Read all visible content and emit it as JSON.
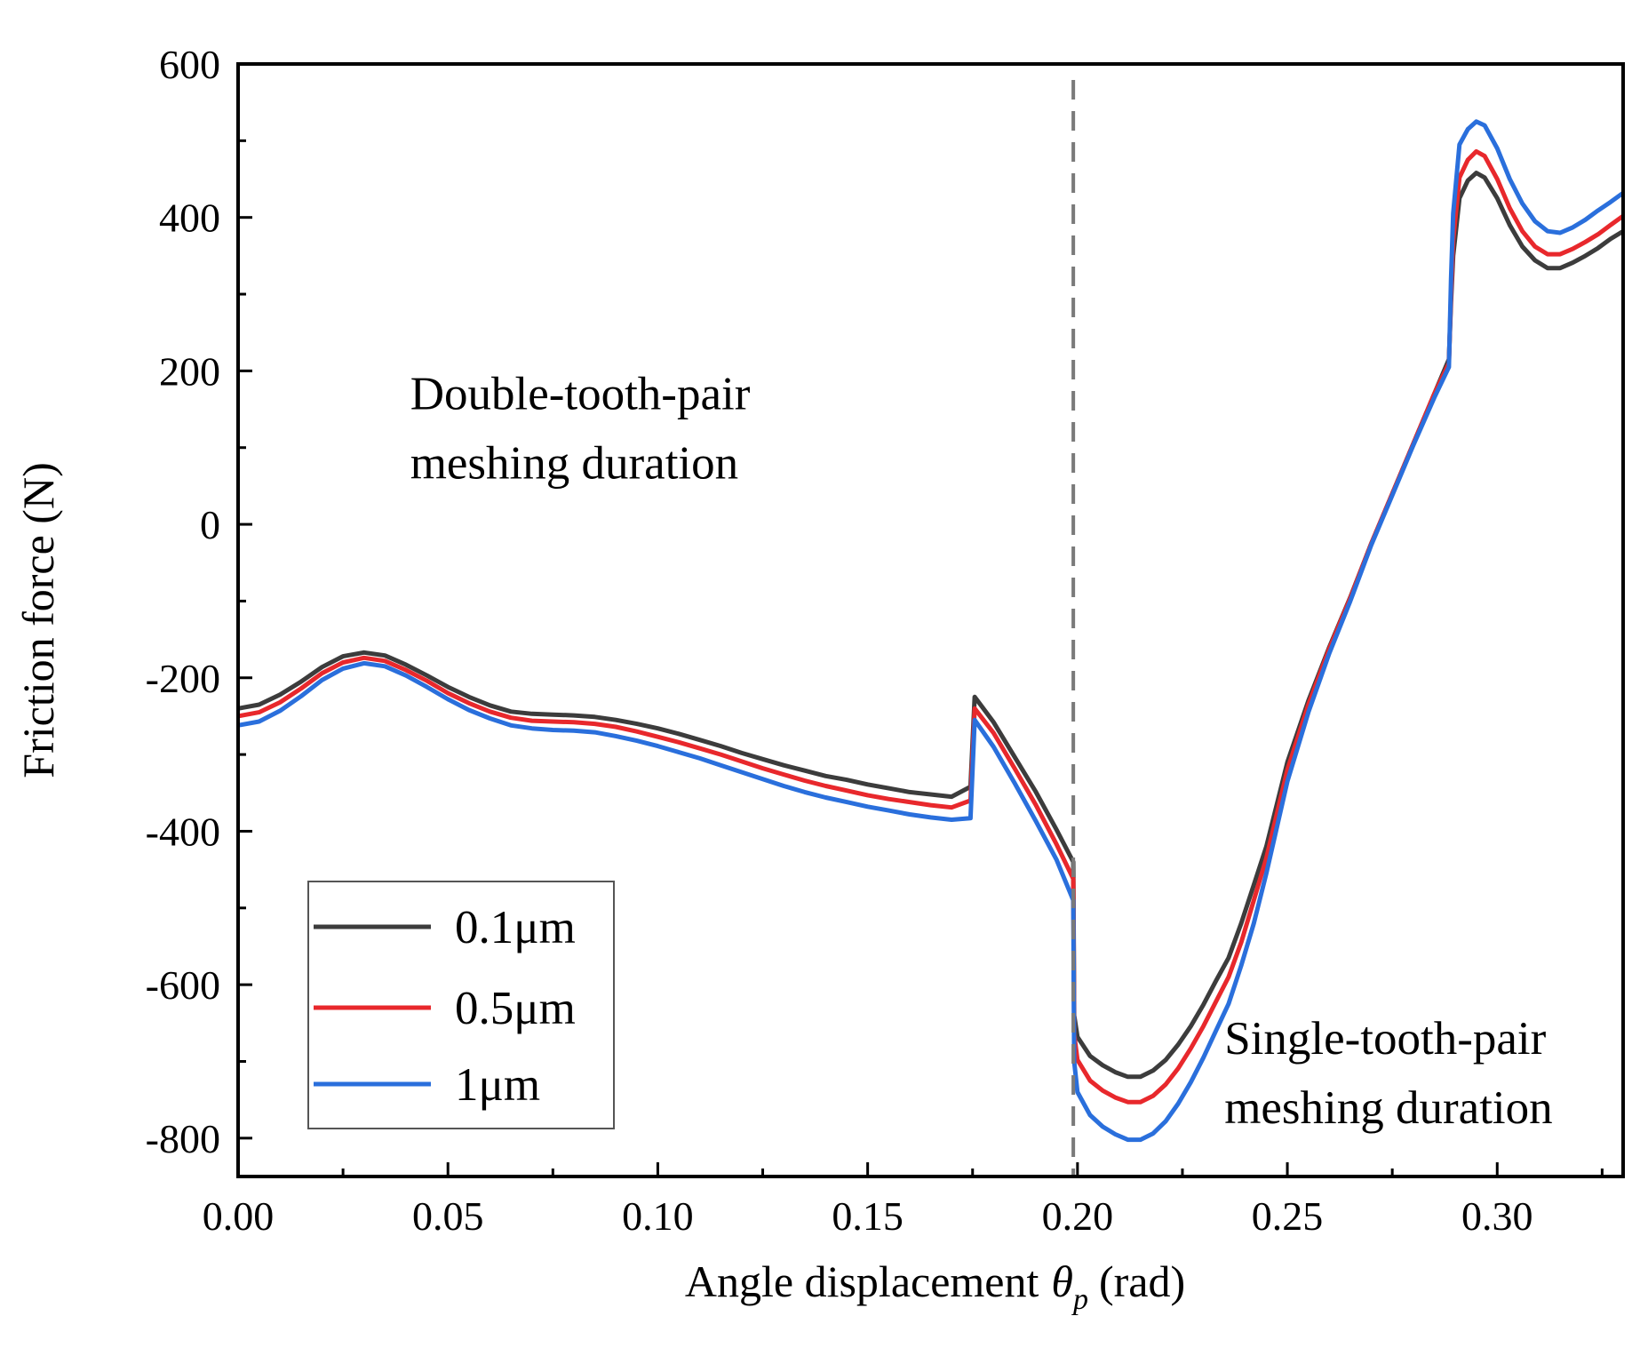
{
  "chart_data": {
    "type": "line",
    "title": "",
    "xlabel": "Angle displacement",
    "xlabel_symbol": "θ",
    "xlabel_subscript": "p",
    "xlabel_unit": "(rad)",
    "ylabel": "Friction force (N)",
    "xlim": [
      0,
      0.33
    ],
    "ylim": [
      -850,
      600
    ],
    "xticks": [
      0.0,
      0.05,
      0.1,
      0.15,
      0.2,
      0.25,
      0.3
    ],
    "xtick_labels": [
      "0.00",
      "0.05",
      "0.10",
      "0.15",
      "0.20",
      "0.25",
      "0.30"
    ],
    "yticks": [
      -800,
      -600,
      -400,
      -200,
      0,
      200,
      400,
      600
    ],
    "ytick_labels": [
      "-800",
      "-600",
      "-400",
      "-200",
      "0",
      "200",
      "400",
      "600"
    ],
    "grid": false,
    "legend_position": "bottom-left",
    "divider_x": 0.199,
    "annotations": [
      {
        "lines": [
          "Double-tooth-pair",
          "meshing duration"
        ],
        "x": 0.041,
        "y": 150
      },
      {
        "lines": [
          "Single-tooth-pair",
          "meshing duration"
        ],
        "x": 0.235,
        "y": -690
      }
    ],
    "series": [
      {
        "name": "0.1μm",
        "color": "#3c3c3c",
        "x": [
          0.0,
          0.005,
          0.01,
          0.015,
          0.02,
          0.025,
          0.03,
          0.035,
          0.04,
          0.045,
          0.05,
          0.055,
          0.06,
          0.065,
          0.07,
          0.075,
          0.08,
          0.085,
          0.09,
          0.095,
          0.1,
          0.105,
          0.11,
          0.115,
          0.12,
          0.125,
          0.13,
          0.135,
          0.14,
          0.145,
          0.15,
          0.155,
          0.16,
          0.165,
          0.17,
          0.1745,
          0.1755,
          0.18,
          0.185,
          0.19,
          0.195,
          0.199,
          0.1992,
          0.2,
          0.203,
          0.206,
          0.209,
          0.212,
          0.215,
          0.218,
          0.221,
          0.224,
          0.227,
          0.23,
          0.233,
          0.236,
          0.239,
          0.242,
          0.245,
          0.25,
          0.255,
          0.26,
          0.265,
          0.27,
          0.275,
          0.28,
          0.285,
          0.2885,
          0.289,
          0.2895,
          0.291,
          0.293,
          0.295,
          0.297,
          0.3,
          0.303,
          0.306,
          0.309,
          0.312,
          0.315,
          0.318,
          0.321,
          0.324,
          0.327,
          0.33
        ],
        "y": [
          -240,
          -235,
          -222,
          -205,
          -186,
          -172,
          -167,
          -171,
          -183,
          -197,
          -212,
          -225,
          -236,
          -244,
          -247,
          -248,
          -249,
          -251,
          -255,
          -260,
          -266,
          -273,
          -281,
          -289,
          -298,
          -306,
          -314,
          -321,
          -328,
          -333,
          -339,
          -344,
          -349,
          -352,
          -355,
          -342,
          -225,
          -258,
          -303,
          -348,
          -398,
          -440,
          -640,
          -668,
          -693,
          -705,
          -714,
          -720,
          -720,
          -712,
          -698,
          -678,
          -654,
          -626,
          -595,
          -565,
          -520,
          -470,
          -420,
          -310,
          -230,
          -160,
          -95,
          -25,
          40,
          105,
          170,
          215,
          290,
          350,
          425,
          448,
          458,
          452,
          425,
          390,
          362,
          344,
          334,
          334,
          341,
          350,
          360,
          372,
          382
        ]
      },
      {
        "name": "0.5μm",
        "color": "#e8282c",
        "x": [
          0.0,
          0.005,
          0.01,
          0.015,
          0.02,
          0.025,
          0.03,
          0.035,
          0.04,
          0.045,
          0.05,
          0.055,
          0.06,
          0.065,
          0.07,
          0.075,
          0.08,
          0.085,
          0.09,
          0.095,
          0.1,
          0.105,
          0.11,
          0.115,
          0.12,
          0.125,
          0.13,
          0.135,
          0.14,
          0.145,
          0.15,
          0.155,
          0.16,
          0.165,
          0.17,
          0.1745,
          0.1755,
          0.18,
          0.185,
          0.19,
          0.195,
          0.199,
          0.1992,
          0.2,
          0.203,
          0.206,
          0.209,
          0.212,
          0.215,
          0.218,
          0.221,
          0.224,
          0.227,
          0.23,
          0.233,
          0.236,
          0.239,
          0.242,
          0.245,
          0.25,
          0.255,
          0.26,
          0.265,
          0.27,
          0.275,
          0.28,
          0.285,
          0.2885,
          0.289,
          0.2895,
          0.291,
          0.293,
          0.295,
          0.297,
          0.3,
          0.303,
          0.306,
          0.309,
          0.312,
          0.315,
          0.318,
          0.321,
          0.324,
          0.327,
          0.33
        ],
        "y": [
          -250,
          -245,
          -232,
          -214,
          -194,
          -180,
          -174,
          -178,
          -190,
          -204,
          -220,
          -233,
          -244,
          -252,
          -256,
          -257,
          -258,
          -260,
          -264,
          -270,
          -277,
          -284,
          -292,
          -300,
          -309,
          -318,
          -326,
          -334,
          -341,
          -347,
          -353,
          -358,
          -362,
          -366,
          -369,
          -360,
          -240,
          -272,
          -318,
          -365,
          -417,
          -462,
          -665,
          -698,
          -725,
          -738,
          -747,
          -753,
          -753,
          -745,
          -730,
          -709,
          -683,
          -654,
          -622,
          -590,
          -545,
          -490,
          -435,
          -320,
          -235,
          -162,
          -96,
          -25,
          40,
          105,
          170,
          210,
          300,
          370,
          452,
          475,
          486,
          480,
          450,
          412,
          382,
          362,
          352,
          352,
          359,
          368,
          378,
          390,
          402
        ]
      },
      {
        "name": "1μm",
        "color": "#2a6fdc",
        "x": [
          0.0,
          0.005,
          0.01,
          0.015,
          0.02,
          0.025,
          0.03,
          0.035,
          0.04,
          0.045,
          0.05,
          0.055,
          0.06,
          0.065,
          0.07,
          0.075,
          0.08,
          0.085,
          0.09,
          0.095,
          0.1,
          0.105,
          0.11,
          0.115,
          0.12,
          0.125,
          0.13,
          0.135,
          0.14,
          0.145,
          0.15,
          0.155,
          0.16,
          0.165,
          0.17,
          0.1745,
          0.1755,
          0.18,
          0.185,
          0.19,
          0.195,
          0.199,
          0.1992,
          0.2,
          0.203,
          0.206,
          0.209,
          0.212,
          0.215,
          0.218,
          0.221,
          0.224,
          0.227,
          0.23,
          0.233,
          0.236,
          0.239,
          0.242,
          0.245,
          0.25,
          0.255,
          0.26,
          0.265,
          0.27,
          0.275,
          0.28,
          0.285,
          0.2885,
          0.289,
          0.2895,
          0.291,
          0.293,
          0.295,
          0.297,
          0.3,
          0.303,
          0.306,
          0.309,
          0.312,
          0.315,
          0.318,
          0.321,
          0.324,
          0.327,
          0.33
        ],
        "y": [
          -262,
          -257,
          -243,
          -224,
          -203,
          -188,
          -181,
          -185,
          -197,
          -212,
          -228,
          -242,
          -253,
          -262,
          -266,
          -268,
          -269,
          -271,
          -276,
          -282,
          -289,
          -297,
          -305,
          -314,
          -323,
          -332,
          -341,
          -349,
          -356,
          -362,
          -368,
          -373,
          -378,
          -382,
          -385,
          -383,
          -255,
          -290,
          -337,
          -386,
          -437,
          -490,
          -700,
          -740,
          -770,
          -785,
          -795,
          -802,
          -802,
          -794,
          -778,
          -755,
          -727,
          -695,
          -660,
          -625,
          -575,
          -520,
          -455,
          -335,
          -245,
          -168,
          -100,
          -27,
          38,
          103,
          165,
          205,
          320,
          405,
          495,
          515,
          525,
          520,
          490,
          450,
          418,
          395,
          382,
          380,
          387,
          397,
          409,
          420,
          432
        ]
      }
    ]
  }
}
